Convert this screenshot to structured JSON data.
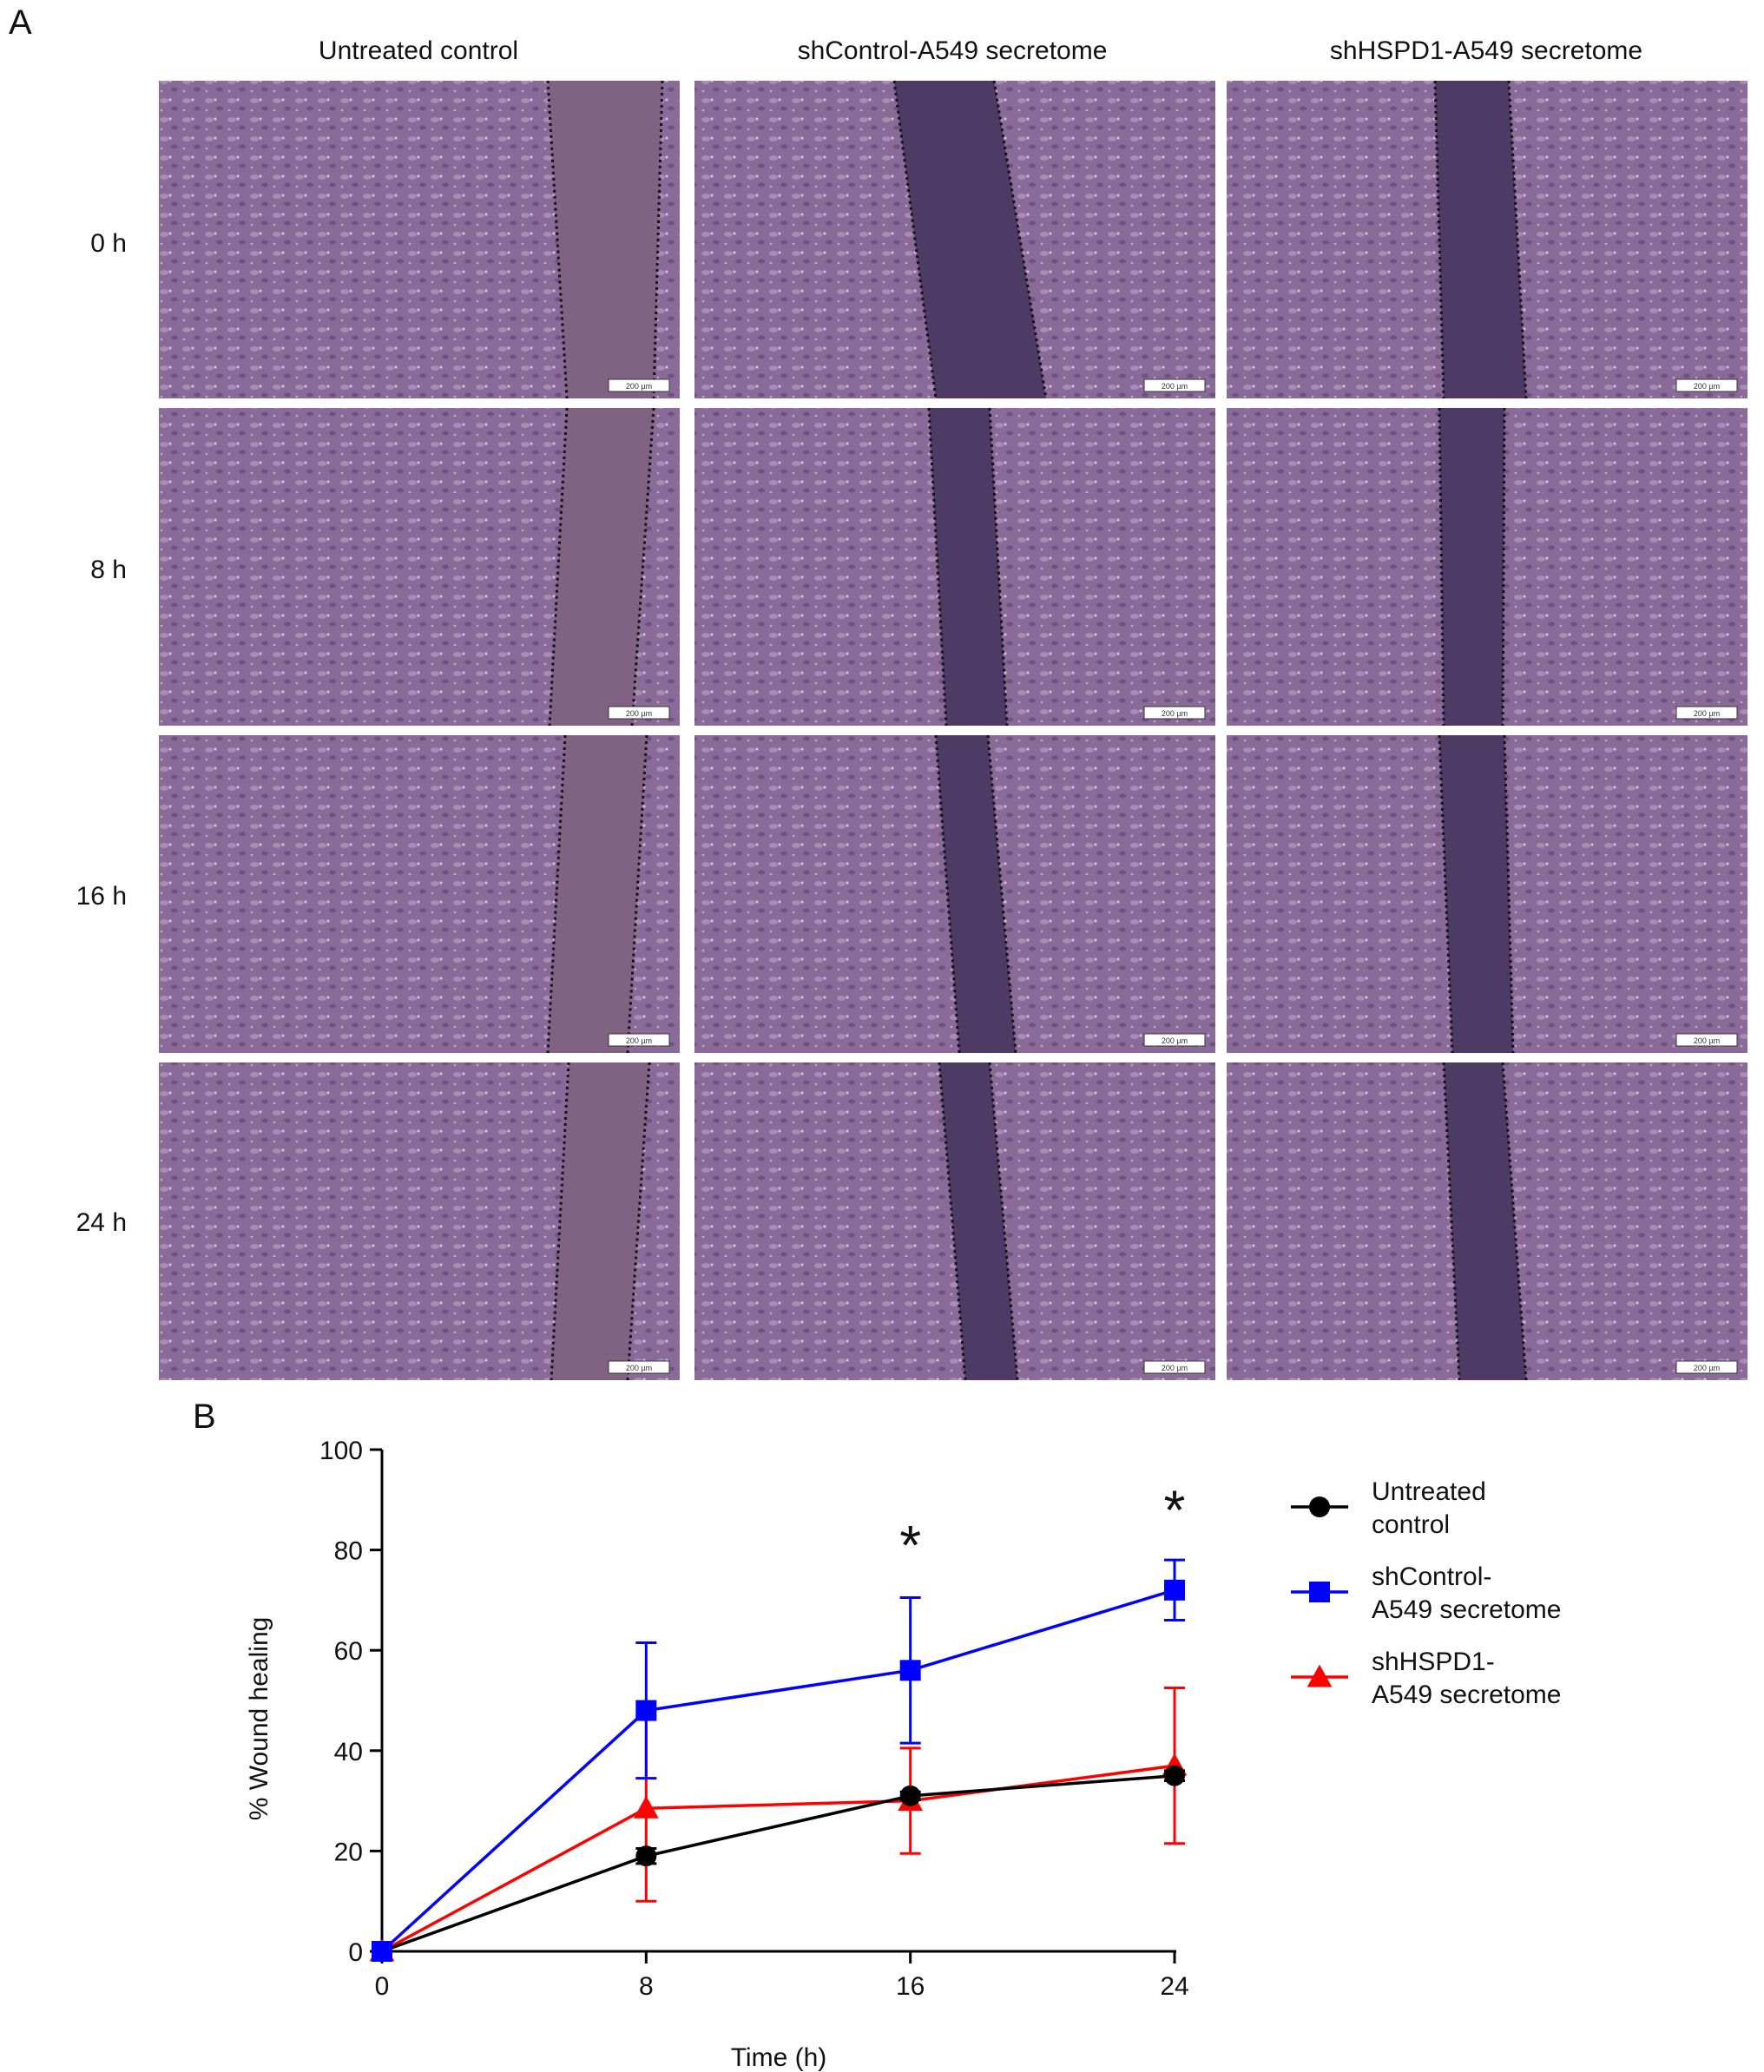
{
  "panel_labels": {
    "a": "A",
    "b": "B"
  },
  "micrographs": {
    "columns": [
      "Untreated control",
      "shControl-A549 secretome",
      "shHSPD1-A549 secretome"
    ],
    "rows": [
      "0 h",
      "8 h",
      "16 h",
      "24 h"
    ],
    "scale_bar_label": "200 µm",
    "colors": {
      "cell_field": "#8a6a98",
      "wound_control": "#806283",
      "wound_secretome": "#4d3b66",
      "dotted_line": "#111111"
    }
  },
  "chart_data": {
    "type": "line",
    "xlabel": "Time (h)",
    "ylabel": "% Wound healing",
    "x": [
      0,
      8,
      16,
      24
    ],
    "xlim": [
      0,
      24
    ],
    "ylim": [
      0,
      100
    ],
    "xticks": [
      0,
      8,
      16,
      24
    ],
    "yticks": [
      0,
      20,
      40,
      60,
      80,
      100
    ],
    "grid": false,
    "legend_position": "right",
    "series": [
      {
        "name": "Untreated control",
        "legend_lines": [
          "Untreated",
          "control"
        ],
        "color": "#000000",
        "marker": "circle",
        "values": [
          0,
          19,
          31,
          35
        ],
        "errors": [
          0,
          1.5,
          0.8,
          1.0
        ]
      },
      {
        "name": "shControl-A549 secretome",
        "legend_lines": [
          "shControl-",
          "A549 secretome"
        ],
        "color": "#0000ff",
        "marker": "square",
        "values": [
          0,
          48,
          56,
          72
        ],
        "errors": [
          0,
          13.5,
          14.5,
          6.0
        ]
      },
      {
        "name": "shHSPD1-A549 secretome",
        "legend_lines": [
          "shHSPD1-",
          "A549 secretome"
        ],
        "color": "#ff0000",
        "marker": "triangle",
        "values": [
          0,
          28.5,
          30,
          37
        ],
        "errors": [
          0,
          18.5,
          10.5,
          15.5
        ]
      }
    ],
    "annotations": [
      {
        "text": "*",
        "x": 16,
        "y": 81
      },
      {
        "text": "*",
        "x": 24,
        "y": 88
      }
    ]
  }
}
